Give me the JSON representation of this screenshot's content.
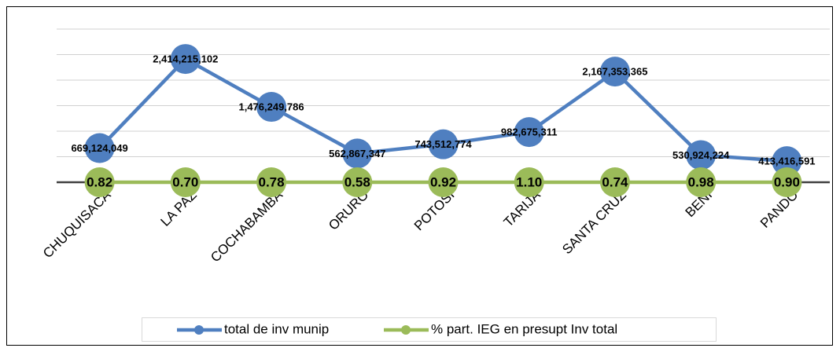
{
  "chart_data": {
    "type": "line",
    "categories": [
      "CHUQUISACA",
      "LA PAZ",
      "COCHABAMBA",
      "ORURO",
      "POTOSI",
      "TARIJA",
      "SANTA CRUZ",
      "BENI",
      "PANDO"
    ],
    "series": [
      {
        "name": "total de inv munip",
        "color": "#4f7fc0",
        "values": [
          669124049,
          2414215102,
          1476249786,
          562867347,
          743512774,
          982675311,
          2167353365,
          530924224,
          413416591
        ],
        "value_labels": [
          "669,124,049",
          "2,414,215,102",
          "1,476,249,786",
          "562,867,347",
          "743,512,774",
          "982,675,311",
          "2,167,353,365",
          "530,924,224",
          "413,416,591"
        ]
      },
      {
        "name": "% part. IEG en presupt Inv total",
        "color": "#9bbb59",
        "values": [
          0.82,
          0.7,
          0.78,
          0.58,
          0.92,
          1.1,
          0.74,
          0.98,
          0.9
        ],
        "value_labels": [
          "0.82",
          "0.70",
          "0.78",
          "0.58",
          "0.92",
          "1.10",
          "0.74",
          "0.98",
          "0.90"
        ]
      }
    ],
    "ylim": [
      0,
      3000000000
    ],
    "yticks": [
      0,
      500000000,
      1000000000,
      1500000000,
      2000000000,
      2500000000,
      3000000000
    ],
    "grid": true,
    "legend": "bottom"
  }
}
